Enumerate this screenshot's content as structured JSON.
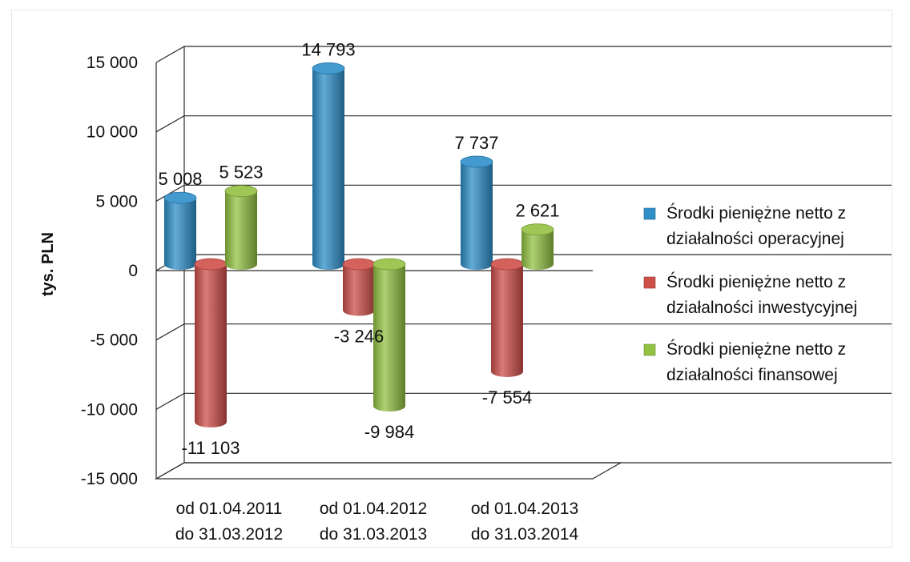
{
  "chart_data": {
    "type": "bar",
    "title": "",
    "ylabel": "tys. PLN",
    "xlabel": "",
    "ylim": [
      -15000,
      15000
    ],
    "yticks": [
      15000,
      10000,
      5000,
      0,
      -5000,
      -10000,
      -15000
    ],
    "ytick_labels": [
      "15 000",
      "10 000",
      "5 000",
      "0",
      "-5 000",
      "-10 000",
      "-15 000"
    ],
    "categories": [
      [
        "od 01.04.2011",
        "do 31.03.2012"
      ],
      [
        "od 01.04.2012",
        "do 31.03.2013"
      ],
      [
        "od 01.04.2013",
        "do 31.03.2014"
      ]
    ],
    "series": [
      {
        "name": [
          "Środki pieniężne netto z",
          "działalności operacyjnej"
        ],
        "color": "#2e8fc9",
        "values": [
          5008,
          14793,
          7737
        ],
        "labels": [
          "5 008",
          "14 793",
          "7 737"
        ]
      },
      {
        "name": [
          "Środki pieniężne netto z",
          "działalności inwestycyjnej"
        ],
        "color": "#cf4f4a",
        "values": [
          -11103,
          -3246,
          -7554
        ],
        "labels": [
          "-11 103",
          "-3 246",
          "-7 554"
        ]
      },
      {
        "name": [
          "Środki pieniężne netto z",
          "działalności finansowej"
        ],
        "color": "#93c142",
        "values": [
          5523,
          -9984,
          2621
        ],
        "labels": [
          "5 523",
          "-9 984",
          "2 621"
        ]
      }
    ],
    "legend_position": "right",
    "grid": true,
    "style": "3d-cylinder"
  }
}
